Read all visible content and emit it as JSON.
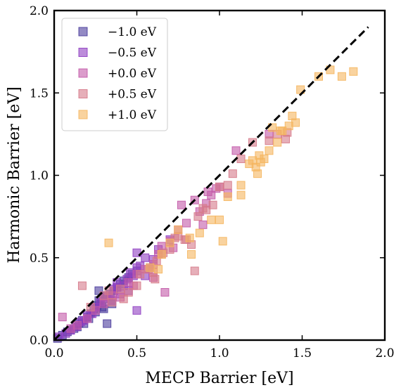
{
  "chart_data": {
    "type": "scatter",
    "title": "",
    "xlabel": "MECP Barrier [eV]",
    "ylabel": "Harmonic Barrier [eV]",
    "xlim": [
      0.0,
      2.0
    ],
    "ylim": [
      0.0,
      2.0
    ],
    "xticks": [
      "0.0",
      "0.5",
      "1.0",
      "1.5",
      "2.0"
    ],
    "yticks": [
      "0.0",
      "0.5",
      "1.0",
      "1.5",
      "2.0"
    ],
    "grid": false,
    "legend_position": "top-left",
    "reference_line": {
      "style": "dashed",
      "color": "#000000",
      "x": [
        0.0,
        1.9
      ],
      "y": [
        0.0,
        1.9
      ]
    },
    "series": [
      {
        "name": "−1.0 eV",
        "color": "#4b3c9c",
        "points": [
          [
            0.02,
            0.01
          ],
          [
            0.05,
            0.03
          ],
          [
            0.08,
            0.05
          ],
          [
            0.1,
            0.06
          ],
          [
            0.12,
            0.07
          ],
          [
            0.14,
            0.08
          ],
          [
            0.15,
            0.1
          ],
          [
            0.17,
            0.12
          ],
          [
            0.18,
            0.1
          ],
          [
            0.2,
            0.14
          ],
          [
            0.21,
            0.13
          ],
          [
            0.22,
            0.16
          ],
          [
            0.24,
            0.19
          ],
          [
            0.25,
            0.17
          ],
          [
            0.26,
            0.21
          ],
          [
            0.27,
            0.24
          ],
          [
            0.28,
            0.22
          ],
          [
            0.29,
            0.2
          ],
          [
            0.3,
            0.25
          ],
          [
            0.3,
            0.19
          ],
          [
            0.32,
            0.27
          ],
          [
            0.32,
            0.1
          ],
          [
            0.34,
            0.28
          ],
          [
            0.36,
            0.3
          ],
          [
            0.38,
            0.32
          ],
          [
            0.4,
            0.34
          ],
          [
            0.42,
            0.36
          ],
          [
            0.45,
            0.38
          ],
          [
            0.47,
            0.4
          ],
          [
            0.5,
            0.42
          ],
          [
            0.27,
            0.3
          ],
          [
            0.35,
            0.22
          ]
        ]
      },
      {
        "name": "−0.5 eV",
        "color": "#8f3fc2",
        "points": [
          [
            0.03,
            0.02
          ],
          [
            0.07,
            0.04
          ],
          [
            0.1,
            0.06
          ],
          [
            0.13,
            0.08
          ],
          [
            0.16,
            0.11
          ],
          [
            0.18,
            0.12
          ],
          [
            0.2,
            0.15
          ],
          [
            0.23,
            0.16
          ],
          [
            0.25,
            0.2
          ],
          [
            0.28,
            0.23
          ],
          [
            0.3,
            0.26
          ],
          [
            0.33,
            0.27
          ],
          [
            0.36,
            0.31
          ],
          [
            0.38,
            0.35
          ],
          [
            0.4,
            0.28
          ],
          [
            0.42,
            0.33
          ],
          [
            0.44,
            0.37
          ],
          [
            0.46,
            0.41
          ],
          [
            0.48,
            0.39
          ],
          [
            0.5,
            0.18
          ],
          [
            0.5,
            0.53
          ],
          [
            0.52,
            0.45
          ],
          [
            0.55,
            0.39
          ],
          [
            0.58,
            0.44
          ],
          [
            0.6,
            0.49
          ],
          [
            0.63,
            0.55
          ],
          [
            0.7,
            0.61
          ],
          [
            0.35,
            0.24
          ],
          [
            0.45,
            0.3
          ],
          [
            0.55,
            0.5
          ],
          [
            0.38,
            0.32
          ],
          [
            0.5,
            0.44
          ]
        ]
      },
      {
        "name": "+0.0 eV",
        "color": "#c35aa8",
        "points": [
          [
            0.05,
            0.14
          ],
          [
            0.1,
            0.07
          ],
          [
            0.14,
            0.09
          ],
          [
            0.2,
            0.13
          ],
          [
            0.25,
            0.18
          ],
          [
            0.3,
            0.22
          ],
          [
            0.35,
            0.27
          ],
          [
            0.4,
            0.26
          ],
          [
            0.45,
            0.35
          ],
          [
            0.5,
            0.4
          ],
          [
            0.55,
            0.43
          ],
          [
            0.6,
            0.46
          ],
          [
            0.63,
            0.52
          ],
          [
            0.65,
            0.57
          ],
          [
            0.67,
            0.29
          ],
          [
            0.7,
            0.6
          ],
          [
            0.75,
            0.67
          ],
          [
            0.77,
            0.82
          ],
          [
            0.8,
            0.71
          ],
          [
            0.85,
            0.85
          ],
          [
            0.88,
            0.78
          ],
          [
            0.9,
            0.7
          ],
          [
            0.92,
            0.83
          ],
          [
            0.95,
            0.88
          ],
          [
            0.98,
            0.92
          ],
          [
            1.0,
            0.93
          ],
          [
            1.05,
            0.89
          ],
          [
            1.1,
            1.15
          ],
          [
            1.3,
            1.25
          ],
          [
            0.6,
            0.38
          ],
          [
            0.72,
            0.56
          ],
          [
            0.93,
            0.9
          ],
          [
            0.48,
            0.33
          ]
        ]
      },
      {
        "name": "+0.5 eV",
        "color": "#d67a8a",
        "points": [
          [
            0.17,
            0.33
          ],
          [
            0.22,
            0.2
          ],
          [
            0.3,
            0.27
          ],
          [
            0.35,
            0.23
          ],
          [
            0.4,
            0.31
          ],
          [
            0.45,
            0.29
          ],
          [
            0.5,
            0.33
          ],
          [
            0.52,
            0.4
          ],
          [
            0.57,
            0.43
          ],
          [
            0.6,
            0.41
          ],
          [
            0.62,
            0.48
          ],
          [
            0.66,
            0.53
          ],
          [
            0.7,
            0.55
          ],
          [
            0.73,
            0.62
          ],
          [
            0.75,
            0.63
          ],
          [
            0.79,
            0.61
          ],
          [
            0.83,
            0.58
          ],
          [
            0.85,
            0.42
          ],
          [
            0.87,
            0.75
          ],
          [
            0.92,
            0.79
          ],
          [
            0.96,
            0.82
          ],
          [
            1.0,
            0.93
          ],
          [
            1.05,
            0.94
          ],
          [
            1.08,
            1.01
          ],
          [
            1.13,
            1.1
          ],
          [
            1.2,
            1.2
          ],
          [
            1.3,
            1.21
          ],
          [
            1.35,
            1.25
          ],
          [
            1.4,
            1.22
          ],
          [
            1.41,
            1.26
          ],
          [
            0.65,
            0.52
          ],
          [
            0.9,
            0.8
          ],
          [
            0.8,
            0.61
          ],
          [
            0.33,
            0.3
          ],
          [
            0.42,
            0.25
          ],
          [
            0.61,
            0.37
          ]
        ]
      },
      {
        "name": "+1.0 eV",
        "color": "#f5b65f",
        "points": [
          [
            0.33,
            0.59
          ],
          [
            0.58,
            0.44
          ],
          [
            0.63,
            0.43
          ],
          [
            0.65,
            0.52
          ],
          [
            0.7,
            0.59
          ],
          [
            0.75,
            0.67
          ],
          [
            0.82,
            0.62
          ],
          [
            0.83,
            0.52
          ],
          [
            0.88,
            0.65
          ],
          [
            0.95,
            0.73
          ],
          [
            1.0,
            0.73
          ],
          [
            1.02,
            0.6
          ],
          [
            1.05,
            0.87
          ],
          [
            1.13,
            0.94
          ],
          [
            1.18,
            1.07
          ],
          [
            1.2,
            1.09
          ],
          [
            1.22,
            1.05
          ],
          [
            1.23,
            1.01
          ],
          [
            1.25,
            1.08
          ],
          [
            1.27,
            1.1
          ],
          [
            1.3,
            1.15
          ],
          [
            1.32,
            1.29
          ],
          [
            1.35,
            1.2
          ],
          [
            1.37,
            1.27
          ],
          [
            1.42,
            1.3
          ],
          [
            1.44,
            1.36
          ],
          [
            1.46,
            1.32
          ],
          [
            1.49,
            1.52
          ],
          [
            1.6,
            1.6
          ],
          [
            1.67,
            1.64
          ],
          [
            1.74,
            1.6
          ],
          [
            1.81,
            1.63
          ],
          [
            1.38,
            1.27
          ],
          [
            1.13,
            0.88
          ],
          [
            1.24,
            1.12
          ]
        ]
      }
    ]
  }
}
